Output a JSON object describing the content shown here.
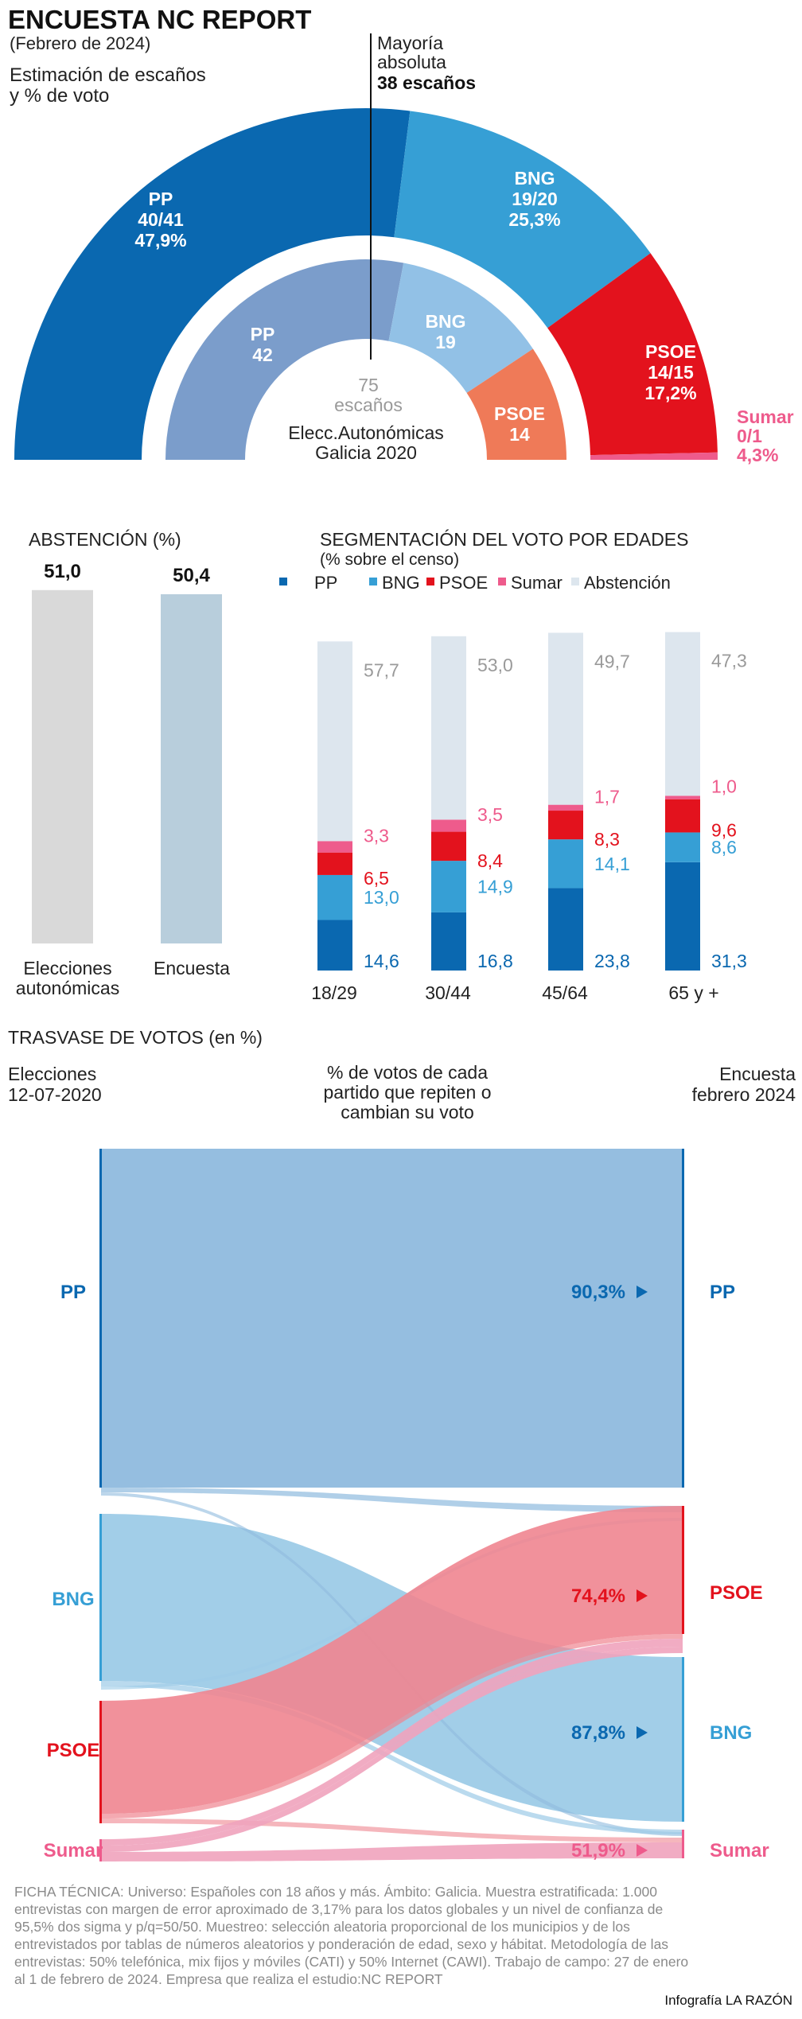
{
  "header": {
    "title": "ENCUESTA NC REPORT",
    "subtitle": "(Febrero de 2024)",
    "seat_note_line1": "Estimación de escaños",
    "seat_note_line2": "y % de voto",
    "majority_line1": "Mayoría",
    "majority_line2": "absoluta",
    "majority_line3": "38 escaños"
  },
  "colors": {
    "pp": "#0a68b0",
    "bng": "#369fd5",
    "psoe": "#e3121d",
    "sumar": "#ee5b8c",
    "pp_2020": "#7b9dcb",
    "bng_2020": "#92c1e6",
    "psoe_2020": "#ef7a58",
    "abstention": "#dde6ee",
    "bar_2020": "#d9d9d9",
    "bar_survey": "#b8cedc",
    "gray_text": "#9a9a9a",
    "flow_pp": "#8fbbde",
    "flow_bng": "#9dcbe7",
    "flow_psoe": "#ef8590",
    "flow_sumar": "#f0a3bc"
  },
  "chart_data": [
    {
      "type": "pie",
      "id": "seats_survey",
      "segments": [
        {
          "party": "PP",
          "seats_label": "40/41",
          "vote_label": "47,9%",
          "seats": 40.5
        },
        {
          "party": "BNG",
          "seats_label": "19/20",
          "vote_label": "25,3%",
          "seats": 19.5
        },
        {
          "party": "PSOE",
          "seats_label": "14/15",
          "vote_label": "17,2%",
          "seats": 14.5
        },
        {
          "party": "Sumar",
          "seats_label": "0/1",
          "vote_label": "4,3%",
          "seats": 0.5
        }
      ],
      "total_seats": 75,
      "majority": 38
    },
    {
      "type": "pie",
      "id": "seats_2020",
      "segments": [
        {
          "party": "PP",
          "seats_label": "42",
          "seats": 42
        },
        {
          "party": "BNG",
          "seats_label": "19",
          "seats": 19
        },
        {
          "party": "PSOE",
          "seats_label": "14",
          "seats": 14
        }
      ],
      "center_line1": "75",
      "center_line2": "escaños",
      "caption_line1": "Elecc.Autonómicas",
      "caption_line2": "Galicia 2020"
    },
    {
      "type": "bar",
      "id": "abstention",
      "title": "ABSTENCIÓN (%)",
      "categories": [
        "Elecciones autonómicas",
        "Encuesta"
      ],
      "category_lines": [
        [
          "Elecciones",
          "autonómicas"
        ],
        [
          "Encuesta"
        ]
      ],
      "values": [
        51.0,
        50.4
      ],
      "value_labels": [
        "51,0",
        "50,4"
      ]
    },
    {
      "type": "bar",
      "id": "age_segmentation",
      "title": "SEGMENTACIÓN DEL VOTO POR EDADES",
      "subtitle": "(% sobre el censo)",
      "categories": [
        "18/29",
        "30/44",
        "45/64",
        "65 y +"
      ],
      "series": [
        {
          "name": "PP",
          "values": [
            14.6,
            16.8,
            23.8,
            31.3
          ],
          "labels": [
            "14,6",
            "16,8",
            "23,8",
            "31,3"
          ]
        },
        {
          "name": "BNG",
          "values": [
            13.0,
            14.9,
            14.1,
            8.6
          ],
          "labels": [
            "13,0",
            "14,9",
            "14,1",
            "8,6"
          ]
        },
        {
          "name": "PSOE",
          "values": [
            6.5,
            8.4,
            8.3,
            9.6
          ],
          "labels": [
            "6,5",
            "8,4",
            "8,3",
            "9,6"
          ]
        },
        {
          "name": "Sumar",
          "values": [
            3.3,
            3.5,
            1.7,
            1.0
          ],
          "labels": [
            "3,3",
            "3,5",
            "1,7",
            "1,0"
          ]
        },
        {
          "name": "Abstención",
          "values": [
            57.7,
            53.0,
            49.7,
            47.3
          ],
          "labels": [
            "57,7",
            "53,0",
            "49,7",
            "47,3"
          ]
        }
      ]
    },
    {
      "type": "sankey",
      "id": "vote_transfer",
      "title": "TRASVASE DE VOTOS",
      "title_suffix": " (en %)",
      "left_header_line1": "Elecciones",
      "left_header_line2": "12-07-2020",
      "center_header_line1": "% de votos de cada",
      "center_header_line2": "partido que repiten o",
      "center_header_line3": "cambian su voto",
      "right_header_line1": "Encuesta",
      "right_header_line2": "febrero 2024",
      "sources": [
        "PP",
        "BNG",
        "PSOE",
        "Sumar"
      ],
      "targets": [
        "PP",
        "PSOE",
        "BNG",
        "Sumar"
      ],
      "retention": [
        {
          "party": "PP",
          "label": "90,3%",
          "value": 90.3
        },
        {
          "party": "PSOE",
          "label": "74,4%",
          "value": 74.4
        },
        {
          "party": "BNG",
          "label": "87,8%",
          "value": 87.8
        },
        {
          "party": "Sumar",
          "label": "51,9%",
          "value": 51.9
        }
      ]
    }
  ],
  "footer": {
    "tech_line1": "FICHA TÉCNICA: Universo: Españoles con 18 años y más. Ámbito: Galicia. Muestra estratificada: 1.000",
    "tech_line2": "entrevistas con margen de error aproximado de 3,17% para los datos globales y un nivel de confianza de",
    "tech_line3": "95,5% dos sigma y p/q=50/50. Muestreo: selección aleatoria proporcional de los municipios y de los",
    "tech_line4": "entrevistados por tablas de números aleatorios y ponderación de edad, sexo y hábitat. Metodología de las",
    "tech_line5": "entrevistas: 50% telefónica, mix fijos y móviles (CATI) y 50% Internet (CAWI). Trabajo de campo: 27 de enero",
    "tech_line6": "al 1 de febrero de 2024. Empresa que realiza el estudio:NC REPORT",
    "credit": "Infografía LA RAZÓN"
  }
}
